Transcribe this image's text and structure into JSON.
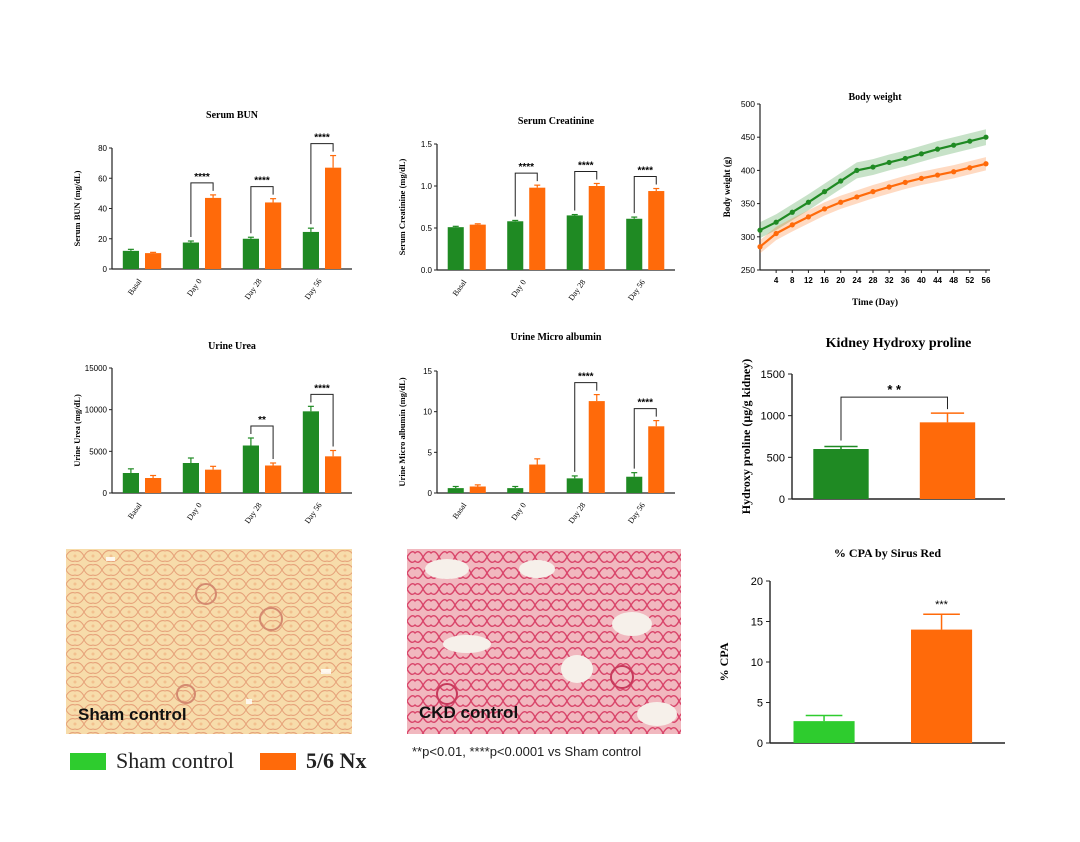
{
  "colors": {
    "green": "#1f8a23",
    "orange": "#ff6a0a",
    "green_light": "#2ecc2e",
    "orange_cpa": "#ff6a0a"
  },
  "legend": {
    "sham_label": "Sham control",
    "nx_label": "5/6 Nx"
  },
  "footnote": "**p<0.01, ****p<0.0001 vs Sham control",
  "histology": {
    "sham_label": "Sham control",
    "ckd_label": "CKD control"
  },
  "chart_data": [
    {
      "id": "serum_bun",
      "type": "bar",
      "title": "Serum BUN",
      "ylabel": "Serum BUN (mg/dL)",
      "xlabel": "",
      "categories": [
        "Basal",
        "Day 0",
        "Day 28",
        "Day 56"
      ],
      "ylim": [
        0,
        80
      ],
      "yticks": [
        0,
        20,
        40,
        60,
        80
      ],
      "series": [
        {
          "values": [
            12,
            17.5,
            20,
            24.5
          ],
          "errors": [
            1,
            1,
            1,
            2.5
          ]
        },
        {
          "values": [
            10.5,
            47,
            44,
            67
          ],
          "errors": [
            0.5,
            2,
            2.5,
            8
          ]
        }
      ],
      "significance": [
        {
          "group": 1,
          "text": "****"
        },
        {
          "group": 2,
          "text": "****"
        },
        {
          "group": 3,
          "text": "****"
        }
      ]
    },
    {
      "id": "serum_creatinine",
      "type": "bar",
      "title": "Serum Creatinine",
      "ylabel": "Serum Creatinine (mg/dL)",
      "xlabel": "",
      "categories": [
        "Basal",
        "Day 0",
        "Day 28",
        "Day 56"
      ],
      "ylim": [
        0,
        1.5
      ],
      "yticks": [
        0.0,
        0.5,
        1.0,
        1.5
      ],
      "ytick_labels": [
        "0.0",
        "0.5",
        "1.0",
        "1.5"
      ],
      "series": [
        {
          "values": [
            0.51,
            0.58,
            0.65,
            0.61
          ],
          "errors": [
            0.01,
            0.01,
            0.01,
            0.02
          ]
        },
        {
          "values": [
            0.54,
            0.98,
            1.0,
            0.94
          ],
          "errors": [
            0.01,
            0.03,
            0.03,
            0.03
          ]
        }
      ],
      "significance": [
        {
          "group": 1,
          "text": "****"
        },
        {
          "group": 2,
          "text": "****"
        },
        {
          "group": 3,
          "text": "****"
        }
      ]
    },
    {
      "id": "body_weight",
      "type": "line",
      "title": "Body weight",
      "ylabel": "Body weight (g)",
      "xlabel": "Time (Day)",
      "xlim": [
        0,
        57
      ],
      "xticks": [
        4,
        8,
        12,
        16,
        20,
        24,
        28,
        32,
        36,
        40,
        44,
        48,
        52,
        56
      ],
      "ylim": [
        250,
        500
      ],
      "yticks": [
        250,
        300,
        350,
        400,
        450,
        500
      ],
      "series": [
        {
          "x": [
            0,
            4,
            8,
            12,
            16,
            20,
            24,
            28,
            32,
            36,
            40,
            44,
            48,
            52,
            56
          ],
          "y": [
            310,
            322,
            337,
            352,
            368,
            384,
            400,
            405,
            412,
            418,
            425,
            432,
            438,
            444,
            450
          ],
          "error": 12
        },
        {
          "x": [
            0,
            4,
            8,
            12,
            16,
            20,
            24,
            28,
            32,
            36,
            40,
            44,
            48,
            52,
            56
          ],
          "y": [
            285,
            305,
            318,
            330,
            342,
            352,
            360,
            368,
            375,
            382,
            388,
            393,
            398,
            404,
            410
          ],
          "error": 10
        }
      ]
    },
    {
      "id": "urine_urea",
      "type": "bar",
      "title": "Urine Urea",
      "ylabel": "Urine Urea (mg/dL)",
      "xlabel": "",
      "categories": [
        "Basal",
        "Day 0",
        "Day 28",
        "Day 56"
      ],
      "ylim": [
        0,
        15000
      ],
      "yticks": [
        0,
        5000,
        10000,
        15000
      ],
      "series": [
        {
          "values": [
            2400,
            3600,
            5700,
            9800
          ],
          "errors": [
            500,
            600,
            900,
            600
          ]
        },
        {
          "values": [
            1800,
            2800,
            3300,
            4400
          ],
          "errors": [
            300,
            400,
            300,
            700
          ]
        }
      ],
      "significance": [
        {
          "group": 2,
          "text": "**"
        },
        {
          "group": 3,
          "text": "****"
        }
      ]
    },
    {
      "id": "urine_micro_albumin",
      "type": "bar",
      "title": "Urine Micro albumin",
      "ylabel": "Urine Micro albumin (mg/dL)",
      "xlabel": "",
      "categories": [
        "Basal",
        "Day 0",
        "Day 28",
        "Day 56"
      ],
      "ylim": [
        0,
        15
      ],
      "yticks": [
        0,
        5,
        10,
        15
      ],
      "series": [
        {
          "values": [
            0.6,
            0.6,
            1.8,
            2.0
          ],
          "errors": [
            0.2,
            0.2,
            0.3,
            0.5
          ]
        },
        {
          "values": [
            0.8,
            3.5,
            11.3,
            8.2
          ],
          "errors": [
            0.2,
            0.7,
            0.8,
            0.7
          ]
        }
      ],
      "significance": [
        {
          "group": 2,
          "text": "****"
        },
        {
          "group": 3,
          "text": "****"
        }
      ]
    },
    {
      "id": "kidney_hydroxyproline",
      "type": "bar",
      "title": "Kidney Hydroxy proline",
      "ylabel": "Hydroxy proline (µg/g kidney)",
      "xlabel": "",
      "categories": [
        "Sham control",
        "5/6 Nx"
      ],
      "ylim": [
        0,
        1500
      ],
      "yticks": [
        0,
        500,
        1000,
        1500
      ],
      "values": [
        600,
        920
      ],
      "errors": [
        30,
        110
      ],
      "significance_text": "* *"
    },
    {
      "id": "cpa_sirius_red",
      "type": "bar",
      "title": "% CPA by Sirus Red",
      "ylabel": "% CPA",
      "xlabel": "",
      "categories": [
        "Sham control",
        "5/6 Nx"
      ],
      "ylim": [
        0,
        20
      ],
      "yticks": [
        0,
        5,
        10,
        15,
        20
      ],
      "values": [
        2.7,
        14.0
      ],
      "errors": [
        0.7,
        1.9
      ],
      "significance_text": "***"
    }
  ]
}
